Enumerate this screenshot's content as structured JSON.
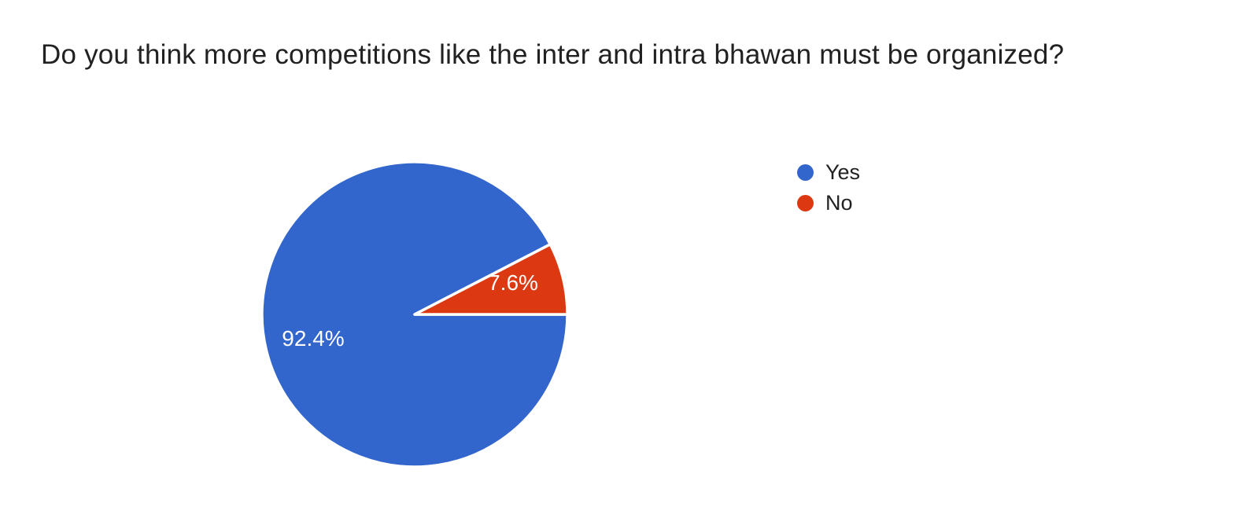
{
  "chart_data": {
    "type": "pie",
    "title": "Do you think more competitions like the inter and intra bhawan must be organized?",
    "categories": [
      "Yes",
      "No"
    ],
    "values": [
      92.4,
      7.6
    ],
    "value_unit": "percent",
    "slice_labels": [
      "92.4%",
      "7.6%"
    ],
    "colors": [
      "#3366cc",
      "#dc3912"
    ],
    "separator_color": "#ffffff",
    "slice_label_color": "#ffffff",
    "title_color": "#212121",
    "legend_text_color": "#212121",
    "legend_position": "right",
    "start_angle_deg": 0,
    "direction": "clockwise",
    "background": "#ffffff"
  }
}
